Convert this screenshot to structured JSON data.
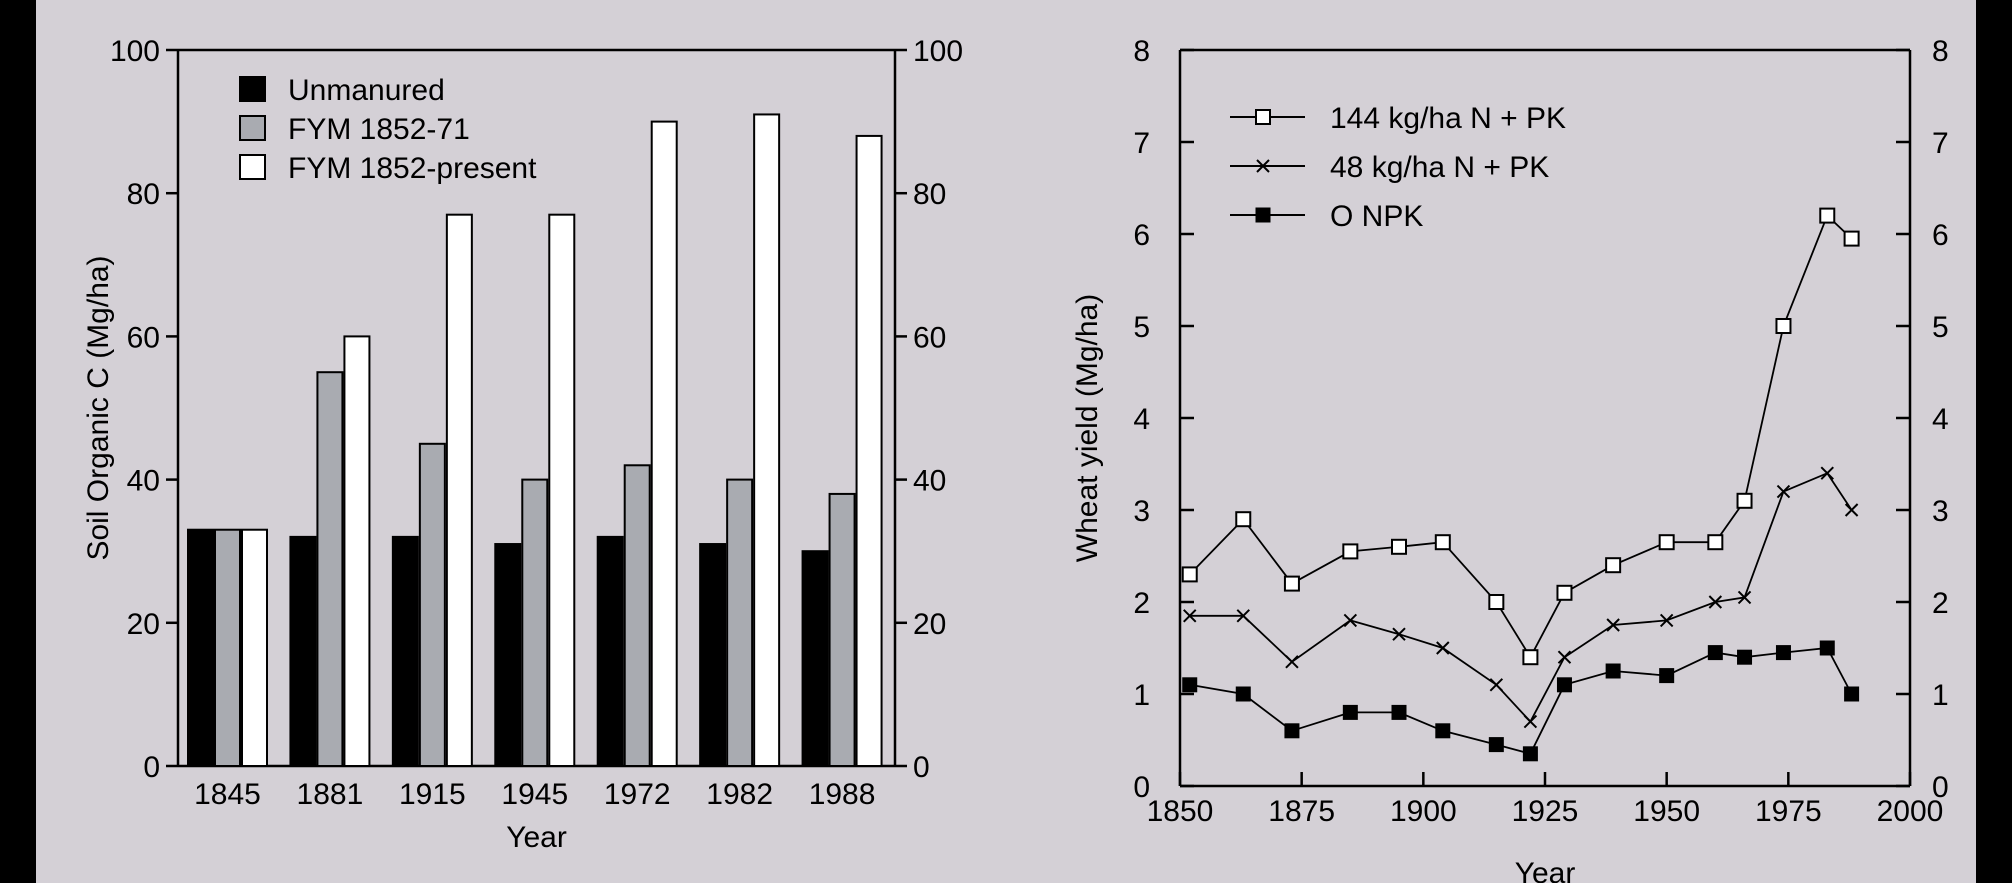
{
  "colors": {
    "background": "#d4d0d6",
    "frame": "#000000",
    "unmanured": "#000000",
    "fym_1852_71": "#a9abb1",
    "fym_1852_present": "#ffffff"
  },
  "chart_data": [
    {
      "type": "bar",
      "title": "",
      "xlabel": "Year",
      "ylabel": "Soil Organic C (Mg/ha)",
      "categories": [
        "1845",
        "1881",
        "1915",
        "1945",
        "1972",
        "1982",
        "1988"
      ],
      "ylim": [
        0,
        100
      ],
      "yticks": [
        "0",
        "20",
        "40",
        "60",
        "80",
        "100"
      ],
      "grid": false,
      "legend_position": "top-left",
      "series": [
        {
          "name": "Unmanured",
          "values": [
            33,
            32,
            32,
            31,
            32,
            31,
            30
          ]
        },
        {
          "name": "FYM 1852-71",
          "values": [
            33,
            55,
            45,
            40,
            42,
            40,
            38
          ]
        },
        {
          "name": "FYM 1852-present",
          "values": [
            33,
            60,
            77,
            77,
            90,
            91,
            88
          ]
        }
      ]
    },
    {
      "type": "line",
      "title": "",
      "xlabel": "Year",
      "ylabel": "Wheat yield (Mg/ha)",
      "xlim": [
        1850,
        2000
      ],
      "ylim": [
        0,
        8
      ],
      "xticks": [
        "1850",
        "1875",
        "1900",
        "1925",
        "1950",
        "1975",
        "2000"
      ],
      "yticks": [
        "0",
        "1",
        "2",
        "3",
        "4",
        "5",
        "6",
        "7",
        "8"
      ],
      "grid": false,
      "legend_position": "top-left",
      "series": [
        {
          "name": "144 kg/ha N + PK",
          "marker": "open-square",
          "x": [
            1852,
            1863,
            1873,
            1885,
            1895,
            1904,
            1915,
            1922,
            1929,
            1939,
            1950,
            1960,
            1966,
            1974,
            1983,
            1988
          ],
          "y": [
            2.3,
            2.9,
            2.2,
            2.55,
            2.6,
            2.65,
            2.0,
            1.4,
            2.1,
            2.4,
            2.65,
            2.65,
            3.1,
            5.0,
            6.2,
            5.95
          ]
        },
        {
          "name": "48 kg/ha N + PK",
          "marker": "cross",
          "x": [
            1852,
            1863,
            1873,
            1885,
            1895,
            1904,
            1915,
            1922,
            1929,
            1939,
            1950,
            1960,
            1966,
            1974,
            1983,
            1988
          ],
          "y": [
            1.85,
            1.85,
            1.35,
            1.8,
            1.65,
            1.5,
            1.1,
            0.7,
            1.4,
            1.75,
            1.8,
            2.0,
            2.05,
            3.2,
            3.4,
            3.0
          ]
        },
        {
          "name": "O NPK",
          "marker": "filled-square",
          "x": [
            1852,
            1863,
            1873,
            1885,
            1895,
            1904,
            1915,
            1922,
            1929,
            1939,
            1950,
            1960,
            1966,
            1974,
            1983,
            1988
          ],
          "y": [
            1.1,
            1.0,
            0.6,
            0.8,
            0.8,
            0.6,
            0.45,
            0.35,
            1.1,
            1.25,
            1.2,
            1.45,
            1.4,
            1.45,
            1.5,
            1.0
          ]
        }
      ]
    }
  ]
}
